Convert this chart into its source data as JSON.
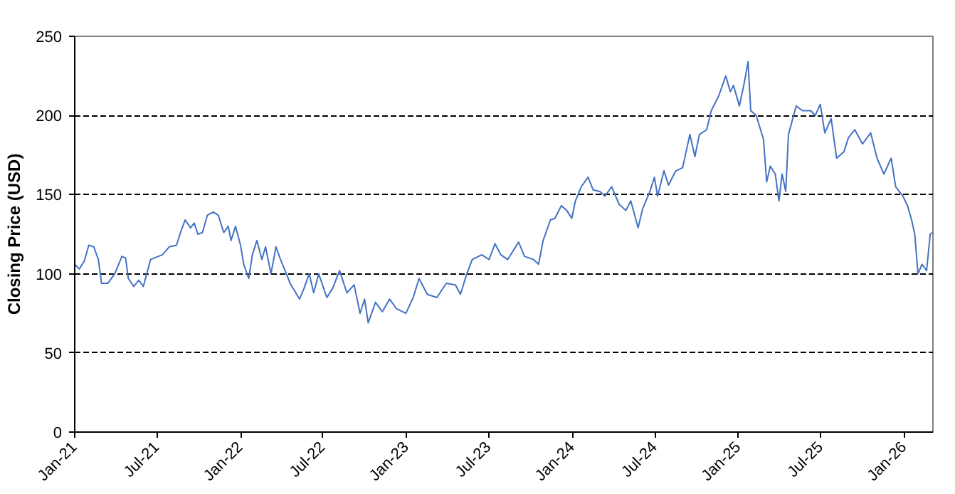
{
  "chart_data": {
    "type": "line",
    "ylabel": "Closing Price (USD)",
    "xlim": [
      "2021-01-01",
      "2026-03-05"
    ],
    "ylim": [
      0,
      250
    ],
    "yticks": [
      0,
      50,
      100,
      150,
      200,
      250
    ],
    "xticks": [
      {
        "value": "2021-01-01",
        "label": "Jan-21"
      },
      {
        "value": "2021-07-01",
        "label": "Jul-21"
      },
      {
        "value": "2022-01-01",
        "label": "Jan-22"
      },
      {
        "value": "2022-07-01",
        "label": "Jul-22"
      },
      {
        "value": "2023-01-01",
        "label": "Jan-23"
      },
      {
        "value": "2023-07-01",
        "label": "Jul-23"
      },
      {
        "value": "2024-01-01",
        "label": "Jan-24"
      },
      {
        "value": "2024-07-01",
        "label": "Jul-24"
      },
      {
        "value": "2025-01-01",
        "label": "Jan-25"
      },
      {
        "value": "2025-07-01",
        "label": "Jul-25"
      },
      {
        "value": "2026-01-01",
        "label": "Jan-26"
      }
    ],
    "grid": "y",
    "line_style": "solid",
    "marker": "none",
    "x": [
      "2021-01-01",
      "2021-01-11",
      "2021-01-22",
      "2021-02-01",
      "2021-02-12",
      "2021-02-22",
      "2021-03-01",
      "2021-03-15",
      "2021-03-30",
      "2021-04-15",
      "2021-04-23",
      "2021-04-29",
      "2021-05-11",
      "2021-05-22",
      "2021-06-01",
      "2021-06-17",
      "2021-07-13",
      "2021-07-28",
      "2021-08-13",
      "2021-08-23",
      "2021-09-01",
      "2021-09-13",
      "2021-09-21",
      "2021-09-29",
      "2021-10-09",
      "2021-10-20",
      "2021-11-02",
      "2021-11-13",
      "2021-11-25",
      "2021-12-05",
      "2021-12-11",
      "2021-12-21",
      "2022-01-01",
      "2022-01-08",
      "2022-01-19",
      "2022-01-27",
      "2022-02-06",
      "2022-02-17",
      "2022-02-25",
      "2022-03-09",
      "2022-03-20",
      "2022-03-30",
      "2022-04-12",
      "2022-04-20",
      "2022-05-11",
      "2022-05-21",
      "2022-06-01",
      "2022-06-11",
      "2022-06-22",
      "2022-07-10",
      "2022-07-23",
      "2022-08-07",
      "2022-08-23",
      "2022-09-08",
      "2022-09-21",
      "2022-10-01",
      "2022-10-09",
      "2022-10-25",
      "2022-11-09",
      "2022-11-25",
      "2022-12-10",
      "2022-12-31",
      "2023-01-16",
      "2023-01-29",
      "2023-02-16",
      "2023-03-09",
      "2023-03-30",
      "2023-04-19",
      "2023-04-30",
      "2023-05-14",
      "2023-05-26",
      "2023-06-16",
      "2023-07-02",
      "2023-07-15",
      "2023-07-28",
      "2023-08-12",
      "2023-09-05",
      "2023-09-18",
      "2023-10-08",
      "2023-10-19",
      "2023-10-29",
      "2023-11-14",
      "2023-11-24",
      "2023-12-08",
      "2023-12-20",
      "2023-12-31",
      "2024-01-08",
      "2024-01-21",
      "2024-02-05",
      "2024-02-16",
      "2024-03-02",
      "2024-03-13",
      "2024-03-28",
      "2024-04-13",
      "2024-04-28",
      "2024-05-09",
      "2024-05-25",
      "2024-06-04",
      "2024-06-20",
      "2024-06-30",
      "2024-07-07",
      "2024-07-21",
      "2024-07-31",
      "2024-08-16",
      "2024-08-31",
      "2024-09-16",
      "2024-09-27",
      "2024-10-07",
      "2024-10-23",
      "2024-11-02",
      "2024-11-18",
      "2024-12-04",
      "2024-12-14",
      "2024-12-21",
      "2025-01-03",
      "2025-01-14",
      "2025-01-22",
      "2025-01-28",
      "2025-02-09",
      "2025-02-25",
      "2025-03-04",
      "2025-03-12",
      "2025-03-23",
      "2025-03-31",
      "2025-04-07",
      "2025-04-15",
      "2025-04-21",
      "2025-05-08",
      "2025-05-22",
      "2025-06-09",
      "2025-06-19",
      "2025-06-30",
      "2025-07-10",
      "2025-07-24",
      "2025-08-05",
      "2025-08-21",
      "2025-08-31",
      "2025-09-14",
      "2025-10-01",
      "2025-10-19",
      "2025-11-02",
      "2025-11-17",
      "2025-12-03",
      "2025-12-13",
      "2025-12-29",
      "2026-01-08",
      "2026-01-17",
      "2026-01-24",
      "2026-01-31",
      "2026-02-09",
      "2026-02-19",
      "2026-02-27",
      "2026-03-04"
    ],
    "series": [
      {
        "color": "#4472c4",
        "values": [
          106,
          103,
          108,
          118,
          117,
          109,
          94,
          94,
          100,
          111,
          110,
          97,
          92,
          96,
          92,
          109,
          112,
          117,
          118,
          127,
          134,
          129,
          132,
          125,
          126,
          137,
          139,
          137,
          126,
          130,
          121,
          130,
          118,
          106,
          97,
          112,
          121,
          109,
          117,
          100,
          117,
          109,
          100,
          94,
          84,
          91,
          100,
          88,
          100,
          85,
          91,
          102,
          88,
          93,
          75,
          84,
          69,
          82,
          76,
          84,
          78,
          75,
          85,
          97,
          87,
          85,
          94,
          93,
          87,
          100,
          109,
          112,
          109,
          119,
          112,
          109,
          120,
          111,
          109,
          106,
          121,
          134,
          135,
          143,
          140,
          135,
          146,
          155,
          161,
          153,
          152,
          149,
          155,
          144,
          140,
          146,
          129,
          141,
          152,
          161,
          149,
          165,
          156,
          165,
          167,
          188,
          174,
          188,
          191,
          203,
          212,
          225,
          215,
          219,
          206,
          221,
          234,
          203,
          200,
          185,
          158,
          168,
          163,
          146,
          163,
          152,
          188,
          206,
          203,
          203,
          200,
          207,
          189,
          198,
          173,
          177,
          186,
          191,
          182,
          189,
          173,
          163,
          173,
          155,
          149,
          143,
          134,
          125,
          100,
          106,
          102,
          125,
          126
        ]
      }
    ]
  }
}
